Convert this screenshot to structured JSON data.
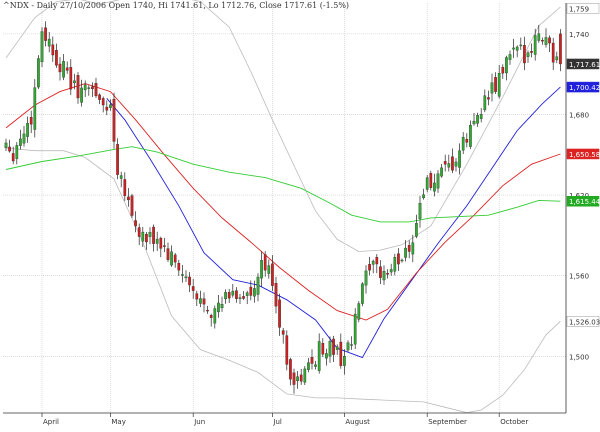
{
  "header": {
    "ticker": "^NDX",
    "info": "Daily 27/10/2006 Open 1740, Hi 1741.61, Lo 1712.76, Close 1717.61 (-1.5%)"
  },
  "colors": {
    "up_candle": "#33a633",
    "down_candle": "#cc2222",
    "ma_fast": "#2020dd",
    "ma_mid": "#dd2222",
    "ma_slow": "#33cc33",
    "bollinger": "#bbbbbb",
    "grid": "#c8c8c8",
    "price_tag": "#333333",
    "price_tag_ma_fast": "#2020dd",
    "price_tag_ma_mid": "#dd2222",
    "price_tag_ma_slow": "#22aa22"
  },
  "chart_data": {
    "type": "candlestick",
    "title": "^NDX - Daily 27/10/2006 Open 1740, Hi 1741.61, Lo 1712.76, Close 1717.61 (-1.5%)",
    "xlabel": "",
    "ylabel": "",
    "grid": true,
    "ylim": [
      1460,
      1760
    ],
    "y_ticks": [
      1500,
      1560,
      1620,
      1680,
      1740
    ],
    "y_tick_labels": [
      "1,500",
      "1,560",
      "1,620",
      "1,680",
      "1,740"
    ],
    "x_month_labels": [
      {
        "label": "April",
        "index": 10
      },
      {
        "label": "May",
        "index": 29
      },
      {
        "label": "Jun",
        "index": 52
      },
      {
        "label": "Jul",
        "index": 74
      },
      {
        "label": "August",
        "index": 94
      },
      {
        "label": "September",
        "index": 117
      },
      {
        "label": "October",
        "index": 137
      }
    ],
    "price_tags": [
      {
        "label": "1,759",
        "value": 1759,
        "style": "plain"
      },
      {
        "label": "1,717.61",
        "value": 1717.6,
        "style": "close"
      },
      {
        "label": "1,700.42",
        "value": 1700.4,
        "style": "ma_fast"
      },
      {
        "label": "1,650.58",
        "value": 1650.6,
        "style": "ma_mid"
      },
      {
        "label": "1,615.44",
        "value": 1615.4,
        "style": "ma_slow"
      },
      {
        "label": "1,526.03",
        "value": 1526.0,
        "style": "plain"
      }
    ],
    "n_days": 155,
    "ohlc_anchors": [
      [
        0,
        1660
      ],
      [
        2,
        1652
      ],
      [
        4,
        1663
      ],
      [
        7,
        1677
      ],
      [
        10,
        1745
      ],
      [
        13,
        1727
      ],
      [
        16,
        1713
      ],
      [
        19,
        1699
      ],
      [
        22,
        1697
      ],
      [
        24,
        1703
      ],
      [
        26,
        1687
      ],
      [
        29,
        1686
      ],
      [
        31,
        1641
      ],
      [
        33,
        1626
      ],
      [
        36,
        1596
      ],
      [
        39,
        1585
      ],
      [
        42,
        1587
      ],
      [
        45,
        1575
      ],
      [
        48,
        1565
      ],
      [
        50,
        1556
      ],
      [
        53,
        1540
      ],
      [
        55,
        1542
      ],
      [
        58,
        1532
      ],
      [
        62,
        1546
      ],
      [
        66,
        1546
      ],
      [
        69,
        1544
      ],
      [
        71,
        1570
      ],
      [
        74,
        1557
      ],
      [
        77,
        1510
      ],
      [
        80,
        1478
      ],
      [
        84,
        1491
      ],
      [
        87,
        1505
      ],
      [
        90,
        1507
      ],
      [
        93,
        1499
      ],
      [
        96,
        1510
      ],
      [
        99,
        1554
      ],
      [
        102,
        1564
      ],
      [
        106,
        1562
      ],
      [
        110,
        1575
      ],
      [
        113,
        1588
      ],
      [
        116,
        1626
      ],
      [
        120,
        1631
      ],
      [
        124,
        1641
      ],
      [
        128,
        1662
      ],
      [
        132,
        1687
      ],
      [
        136,
        1700
      ],
      [
        140,
        1725
      ],
      [
        144,
        1725
      ],
      [
        147,
        1737
      ],
      [
        150,
        1740
      ],
      [
        152,
        1722
      ],
      [
        154,
        1717.6
      ]
    ],
    "series": [
      {
        "name": "MA fast",
        "color_key": "ma_fast",
        "points": [
          [
            28,
            1692
          ],
          [
            33,
            1676
          ],
          [
            40,
            1647
          ],
          [
            48,
            1612
          ],
          [
            55,
            1577
          ],
          [
            63,
            1557
          ],
          [
            70,
            1553
          ],
          [
            78,
            1542
          ],
          [
            86,
            1527
          ],
          [
            92,
            1506
          ],
          [
            99,
            1499
          ],
          [
            105,
            1528
          ],
          [
            112,
            1554
          ],
          [
            120,
            1584
          ],
          [
            128,
            1612
          ],
          [
            135,
            1640
          ],
          [
            142,
            1668
          ],
          [
            149,
            1688
          ],
          [
            154,
            1700.4
          ]
        ]
      },
      {
        "name": "MA mid",
        "color_key": "ma_mid",
        "points": [
          [
            0,
            1670
          ],
          [
            8,
            1687
          ],
          [
            15,
            1697
          ],
          [
            22,
            1703
          ],
          [
            29,
            1697
          ],
          [
            36,
            1676
          ],
          [
            44,
            1650
          ],
          [
            52,
            1625
          ],
          [
            60,
            1603
          ],
          [
            68,
            1585
          ],
          [
            76,
            1566
          ],
          [
            84,
            1549
          ],
          [
            92,
            1534
          ],
          [
            100,
            1527
          ],
          [
            106,
            1535
          ],
          [
            114,
            1562
          ],
          [
            122,
            1585
          ],
          [
            130,
            1605
          ],
          [
            138,
            1627
          ],
          [
            146,
            1643
          ],
          [
            154,
            1650.6
          ]
        ]
      },
      {
        "name": "MA slow",
        "color_key": "ma_slow",
        "points": [
          [
            0,
            1639
          ],
          [
            10,
            1645
          ],
          [
            20,
            1649
          ],
          [
            30,
            1654
          ],
          [
            35,
            1656
          ],
          [
            42,
            1652
          ],
          [
            52,
            1643
          ],
          [
            62,
            1637
          ],
          [
            72,
            1633
          ],
          [
            82,
            1625
          ],
          [
            90,
            1614
          ],
          [
            96,
            1605
          ],
          [
            104,
            1600
          ],
          [
            112,
            1600
          ],
          [
            118,
            1603
          ],
          [
            126,
            1604
          ],
          [
            134,
            1605
          ],
          [
            142,
            1611
          ],
          [
            148,
            1616
          ],
          [
            154,
            1615.4
          ]
        ]
      },
      {
        "name": "Bollinger upper",
        "color_key": "bollinger",
        "points": [
          [
            0,
            1722
          ],
          [
            8,
            1752
          ],
          [
            14,
            1764
          ],
          [
            20,
            1766
          ],
          [
            26,
            1762
          ],
          [
            34,
            1767
          ],
          [
            44,
            1770
          ],
          [
            54,
            1764
          ],
          [
            62,
            1745
          ],
          [
            68,
            1712
          ],
          [
            74,
            1676
          ],
          [
            80,
            1642
          ],
          [
            86,
            1608
          ],
          [
            92,
            1587
          ],
          [
            98,
            1578
          ],
          [
            104,
            1579
          ],
          [
            110,
            1583
          ],
          [
            118,
            1597
          ],
          [
            128,
            1643
          ],
          [
            138,
            1693
          ],
          [
            148,
            1746
          ],
          [
            154,
            1760
          ]
        ]
      },
      {
        "name": "Bollinger lower",
        "color_key": "bollinger",
        "points": [
          [
            0,
            1655
          ],
          [
            8,
            1653
          ],
          [
            16,
            1653
          ],
          [
            22,
            1648
          ],
          [
            30,
            1632
          ],
          [
            38,
            1585
          ],
          [
            46,
            1530
          ],
          [
            54,
            1505
          ],
          [
            62,
            1497
          ],
          [
            70,
            1488
          ],
          [
            78,
            1472
          ],
          [
            86,
            1469
          ],
          [
            92,
            1469
          ],
          [
            100,
            1468
          ],
          [
            108,
            1467
          ],
          [
            116,
            1466
          ],
          [
            122,
            1462
          ],
          [
            128,
            1458
          ],
          [
            132,
            1460
          ],
          [
            138,
            1471
          ],
          [
            144,
            1490
          ],
          [
            150,
            1516
          ],
          [
            154,
            1526
          ]
        ]
      }
    ]
  }
}
